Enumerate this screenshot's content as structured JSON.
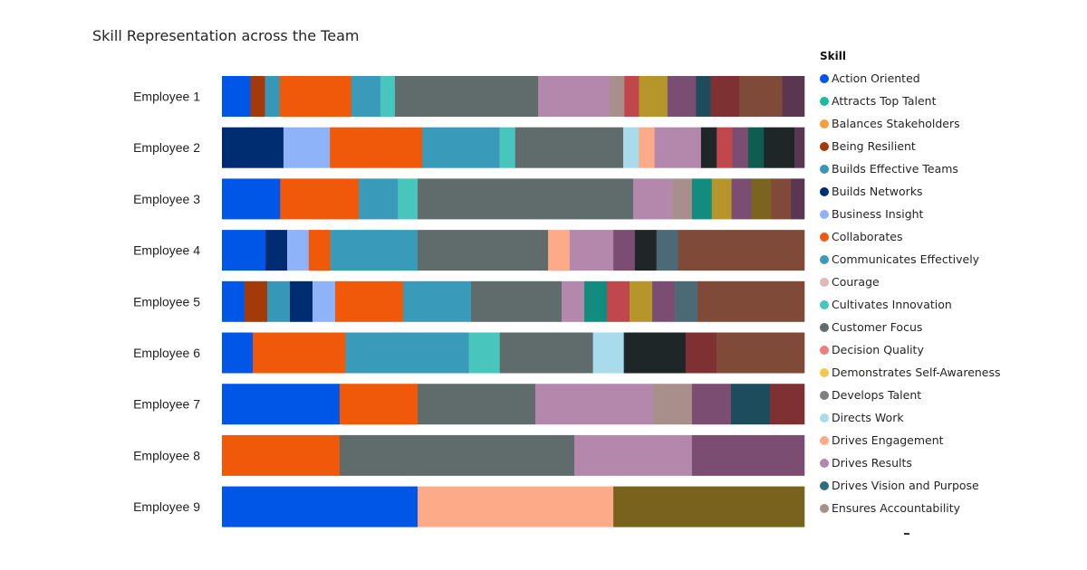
{
  "chart_data": {
    "type": "bar",
    "orientation": "horizontal",
    "stacked": "100%",
    "title": "Skill Representation across the Team",
    "legend_title": "Skill",
    "legend_position": "right",
    "grid": false,
    "categories": [
      "Employee 1",
      "Employee 2",
      "Employee 3",
      "Employee 4",
      "Employee 5",
      "Employee 6",
      "Employee 7",
      "Employee 8",
      "Employee 9"
    ],
    "legend": [
      {
        "name": "Action Oriented",
        "color": "#0057E7"
      },
      {
        "name": "Attracts Top Talent",
        "color": "#1ABC9C"
      },
      {
        "name": "Balances Stakeholders",
        "color": "#F4A03C"
      },
      {
        "name": "Being Resilient",
        "color": "#A4390A"
      },
      {
        "name": "Builds Effective Teams",
        "color": "#3797B8"
      },
      {
        "name": "Builds Networks",
        "color": "#002D72"
      },
      {
        "name": "Business Insight",
        "color": "#8FB3F9"
      },
      {
        "name": "Collaborates",
        "color": "#F0580A"
      },
      {
        "name": "Communicates Effectively",
        "color": "#3A9AB9"
      },
      {
        "name": "Courage",
        "color": "#E0B8B8"
      },
      {
        "name": "Cultivates Innovation",
        "color": "#48C6BE"
      },
      {
        "name": "Customer Focus",
        "color": "#606B6B"
      },
      {
        "name": "Decision Quality",
        "color": "#F07B7B"
      },
      {
        "name": "Demonstrates Self-Awareness",
        "color": "#F2C94C"
      },
      {
        "name": "Develops Talent",
        "color": "#7F7F7F"
      },
      {
        "name": "Directs Work",
        "color": "#A8DCEC"
      },
      {
        "name": "Drives Engagement",
        "color": "#FDAA89"
      },
      {
        "name": "Drives Results",
        "color": "#B388AC"
      },
      {
        "name": "Drives Vision and Purpose",
        "color": "#2A6E80"
      },
      {
        "name": "Ensures Accountability",
        "color": "#A98F8C"
      }
    ],
    "rows": [
      [
        [
          4.9,
          "#0057E7"
        ],
        [
          2.5,
          "#A4390A"
        ],
        [
          2.5,
          "#3797B8"
        ],
        [
          12.3,
          "#F0580A"
        ],
        [
          5,
          "#3A9AB9"
        ],
        [
          2.5,
          "#48C6BE"
        ],
        [
          24.6,
          "#606B6B"
        ],
        [
          12.3,
          "#B388AC"
        ],
        [
          2.5,
          "#A98F8C"
        ],
        [
          2.5,
          "#C0474B"
        ],
        [
          4.9,
          "#B6952A"
        ],
        [
          4.9,
          "#7C4D72"
        ],
        [
          2.5,
          "#1D4D5C"
        ],
        [
          4.9,
          "#7F3032"
        ],
        [
          7.4,
          "#7F4A38"
        ],
        [
          3.8,
          "#5A3651"
        ]
      ],
      [
        [
          10.6,
          "#002D72"
        ],
        [
          8,
          "#8FB3F9"
        ],
        [
          15.9,
          "#F0580A"
        ],
        [
          13.3,
          "#3A9AB9"
        ],
        [
          2.7,
          "#48C6BE"
        ],
        [
          18.6,
          "#606B6B"
        ],
        [
          2.7,
          "#A8DCEC"
        ],
        [
          2.7,
          "#FDAA89"
        ],
        [
          8,
          "#B388AC"
        ],
        [
          2.7,
          "#1E2628"
        ],
        [
          2.7,
          "#C0474B"
        ],
        [
          2.7,
          "#7C4D72"
        ],
        [
          2.7,
          "#0F5C52"
        ],
        [
          5.3,
          "#1E2628"
        ],
        [
          1.7,
          "#5A3651"
        ]
      ],
      [
        [
          10,
          "#0057E7"
        ],
        [
          13.5,
          "#F0580A"
        ],
        [
          6.7,
          "#3A9AB9"
        ],
        [
          3.4,
          "#48C6BE"
        ],
        [
          37,
          "#606B6B"
        ],
        [
          6.7,
          "#B388AC"
        ],
        [
          3.4,
          "#A98F8C"
        ],
        [
          3.4,
          "#138C80"
        ],
        [
          3.4,
          "#B6952A"
        ],
        [
          3.4,
          "#7C4D72"
        ],
        [
          3.4,
          "#7A6420"
        ],
        [
          3.4,
          "#7F4A38"
        ],
        [
          2.3,
          "#5A3651"
        ]
      ],
      [
        [
          7.5,
          "#0057E7"
        ],
        [
          3.7,
          "#002D72"
        ],
        [
          3.7,
          "#8FB3F9"
        ],
        [
          3.7,
          "#F0580A"
        ],
        [
          15,
          "#3A9AB9"
        ],
        [
          22.4,
          "#606B6B"
        ],
        [
          3.7,
          "#FDAA89"
        ],
        [
          7.5,
          "#B388AC"
        ],
        [
          3.7,
          "#7C4D72"
        ],
        [
          3.7,
          "#1E2628"
        ],
        [
          3.7,
          "#4B6A75"
        ],
        [
          21.7,
          "#7F4A38"
        ]
      ],
      [
        [
          3.9,
          "#0057E7"
        ],
        [
          3.9,
          "#A4390A"
        ],
        [
          3.9,
          "#3797B8"
        ],
        [
          3.9,
          "#002D72"
        ],
        [
          3.9,
          "#8FB3F9"
        ],
        [
          11.7,
          "#F0580A"
        ],
        [
          11.7,
          "#3A9AB9"
        ],
        [
          15.6,
          "#606B6B"
        ],
        [
          3.9,
          "#B388AC"
        ],
        [
          3.9,
          "#138C80"
        ],
        [
          3.9,
          "#C0474B"
        ],
        [
          3.9,
          "#B6952A"
        ],
        [
          3.9,
          "#7C4D72"
        ],
        [
          3.9,
          "#4B6A75"
        ],
        [
          18.4,
          "#7F4A38"
        ]
      ],
      [
        [
          5.3,
          "#0057E7"
        ],
        [
          15.9,
          "#F0580A"
        ],
        [
          21.2,
          "#3A9AB9"
        ],
        [
          5.3,
          "#48C6BE"
        ],
        [
          16,
          "#606B6B"
        ],
        [
          5.3,
          "#A8DCEC"
        ],
        [
          10.6,
          "#1E2628"
        ],
        [
          5.3,
          "#7F3032"
        ],
        [
          15.1,
          "#7F4A38"
        ]
      ],
      [
        [
          20.2,
          "#0057E7"
        ],
        [
          13.4,
          "#F0580A"
        ],
        [
          20.2,
          "#606B6B"
        ],
        [
          20.2,
          "#B388AC"
        ],
        [
          6.7,
          "#A98F8C"
        ],
        [
          6.7,
          "#7C4D72"
        ],
        [
          6.7,
          "#1D4D5C"
        ],
        [
          5.9,
          "#7F3032"
        ]
      ],
      [
        [
          20.2,
          "#F0580A"
        ],
        [
          40.3,
          "#606B6B"
        ],
        [
          20.2,
          "#B388AC"
        ],
        [
          19.3,
          "#7C4D72"
        ]
      ],
      [
        [
          33.6,
          "#0057E7"
        ],
        [
          33.6,
          "#FDAA89"
        ],
        [
          32.8,
          "#78621C"
        ]
      ]
    ]
  }
}
